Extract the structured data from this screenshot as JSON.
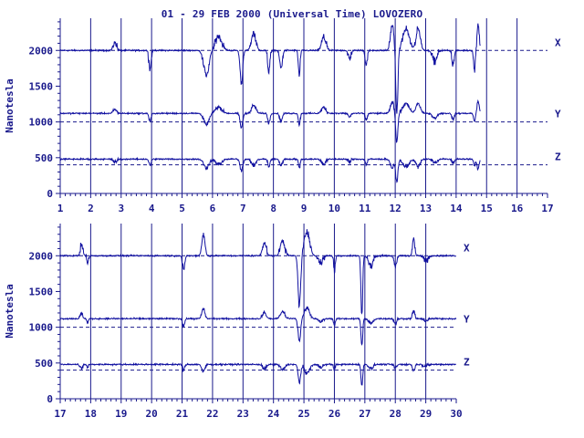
{
  "title": "01 - 29 FEB 2000 (Universal Time) LOVOZERO",
  "colors": {
    "ink": "#1a1a8c",
    "trace": "#1010a0"
  },
  "chart_data": [
    {
      "type": "line",
      "ylabel": "Nanotesla",
      "xlim": [
        1,
        17
      ],
      "ylim": [
        0,
        2450
      ],
      "x_ticks": [
        "1",
        "2",
        "3",
        "4",
        "5",
        "6",
        "7",
        "8",
        "9",
        "10",
        "11",
        "12",
        "13",
        "14",
        "15",
        "16",
        "17"
      ],
      "y_ticks": [
        "0",
        "500",
        "1000",
        "1500",
        "2000"
      ],
      "data_end_day": 14.8,
      "series": [
        {
          "name": "X",
          "baseline": 2000
        },
        {
          "name": "Y",
          "baseline": 1000
        },
        {
          "name": "Z",
          "baseline": 400
        }
      ]
    },
    {
      "type": "line",
      "ylabel": "Nanotesla",
      "xlim": [
        17,
        30
      ],
      "ylim": [
        0,
        2450
      ],
      "x_ticks": [
        "17",
        "18",
        "19",
        "20",
        "21",
        "22",
        "23",
        "24",
        "25",
        "26",
        "27",
        "28",
        "29",
        "30"
      ],
      "y_ticks": [
        "0",
        "500",
        "1000",
        "1500",
        "2000"
      ],
      "data_end_day": 30,
      "series": [
        {
          "name": "X",
          "baseline": 2000
        },
        {
          "name": "Y",
          "baseline": 1000
        },
        {
          "name": "Z",
          "baseline": 400
        }
      ]
    }
  ]
}
